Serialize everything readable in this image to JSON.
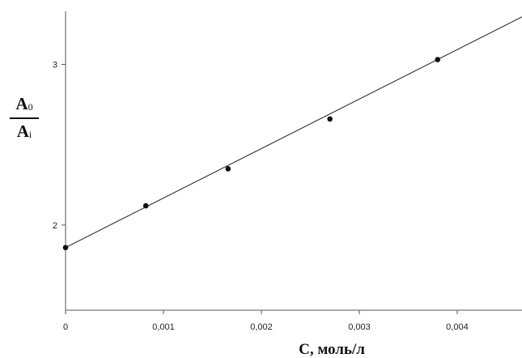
{
  "chart_data": {
    "type": "scatter",
    "title": "",
    "xlabel": "C, моль/л",
    "ylabel": {
      "numerator": "A",
      "numerator_sub": "0",
      "denominator": "A",
      "denominator_sub": "i"
    },
    "xlim": [
      0,
      0.00467
    ],
    "ylim": [
      1.47,
      3.33
    ],
    "x_ticks": [
      {
        "value": 0,
        "label": "0"
      },
      {
        "value": 0.001,
        "label": "0,001"
      },
      {
        "value": 0.002,
        "label": "0,002"
      },
      {
        "value": 0.003,
        "label": "0,003"
      },
      {
        "value": 0.004,
        "label": "0,004"
      }
    ],
    "y_ticks": [
      {
        "value": 2,
        "label": "2"
      },
      {
        "value": 3,
        "label": "3"
      }
    ],
    "grid": false,
    "series": [
      {
        "points": [
          {
            "x": 0.0,
            "y": 1.86
          },
          {
            "x": 0.00082,
            "y": 2.12
          },
          {
            "x": 0.00166,
            "y": 2.35
          },
          {
            "x": 0.0027,
            "y": 2.66
          },
          {
            "x": 0.0038,
            "y": 3.03
          }
        ],
        "trendline": {
          "type": "linear",
          "slope": 308,
          "intercept": 1.86
        },
        "color": "#111111"
      }
    ]
  }
}
